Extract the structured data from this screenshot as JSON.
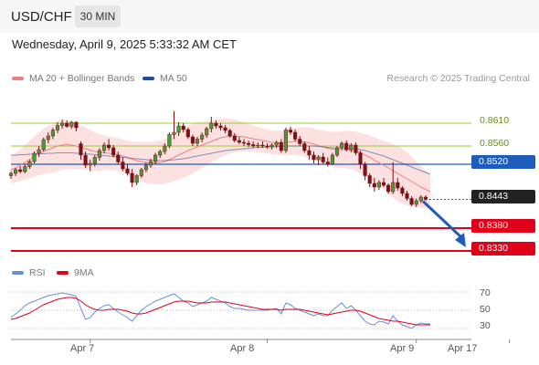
{
  "header": {
    "symbol": "USD/CHF",
    "interval": "30 MIN",
    "datetime": "Wednesday, April 9, 2025 5:33:32 AM CET"
  },
  "legend": {
    "ma20_label": "MA 20 + Bollinger Bands",
    "ma50_label": "MA 50",
    "credit": "Research © 2025 Trading Central"
  },
  "colors": {
    "ma20": "#f08080",
    "ma50": "#1f4e9c",
    "bands_fill": "#fde0e0",
    "candles": "#7a1218",
    "resistance": "#9acd32",
    "pivot": "#1f5bb8",
    "support": "#e0001a",
    "current": "#222222",
    "rsi": "#6a8fd8",
    "rsi_ma": "#e0001a"
  },
  "levels": {
    "r2": "0.8610",
    "r1": "0.8560",
    "pivot": "0.8520",
    "current": "0.8443",
    "s1": "0.8380",
    "s2": "0.8330"
  },
  "rsi": {
    "rsi_label": "RSI",
    "ma_label": "9MA",
    "ticks": [
      "70",
      "50",
      "30"
    ]
  },
  "xaxis": {
    "ticks": [
      "Apr 7",
      "Apr 8",
      "Apr 9",
      "Apr 17"
    ]
  },
  "chart_data": {
    "type": "candlestick",
    "candles": [
      [
        0.8495,
        0.8505,
        0.8488,
        0.85
      ],
      [
        0.85,
        0.8512,
        0.8494,
        0.8508
      ],
      [
        0.8508,
        0.8516,
        0.85,
        0.8504
      ],
      [
        0.8504,
        0.852,
        0.85,
        0.8515
      ],
      [
        0.8515,
        0.853,
        0.851,
        0.8526
      ],
      [
        0.8526,
        0.8548,
        0.8522,
        0.8544
      ],
      [
        0.8544,
        0.856,
        0.8536,
        0.8552
      ],
      [
        0.8552,
        0.8578,
        0.8548,
        0.8574
      ],
      [
        0.8574,
        0.859,
        0.8566,
        0.8582
      ],
      [
        0.8582,
        0.86,
        0.8575,
        0.8595
      ],
      [
        0.8595,
        0.8612,
        0.8588,
        0.8605
      ],
      [
        0.8605,
        0.8618,
        0.8598,
        0.861
      ],
      [
        0.861,
        0.8616,
        0.86,
        0.8603
      ],
      [
        0.8603,
        0.8615,
        0.8598,
        0.8612
      ],
      [
        0.8612,
        0.8614,
        0.8592,
        0.86
      ],
      [
        0.8565,
        0.857,
        0.853,
        0.854
      ],
      [
        0.854,
        0.8548,
        0.8512,
        0.8518
      ],
      [
        0.8518,
        0.853,
        0.8505,
        0.8522
      ],
      [
        0.8522,
        0.854,
        0.8515,
        0.8535
      ],
      [
        0.8535,
        0.8555,
        0.8528,
        0.855
      ],
      [
        0.855,
        0.8568,
        0.8544,
        0.8562
      ],
      [
        0.8562,
        0.8575,
        0.855,
        0.8556
      ],
      [
        0.8556,
        0.8562,
        0.8535,
        0.854
      ],
      [
        0.854,
        0.8548,
        0.852,
        0.8525
      ],
      [
        0.8525,
        0.8535,
        0.8505,
        0.851
      ],
      [
        0.851,
        0.852,
        0.8495,
        0.85
      ],
      [
        0.85,
        0.851,
        0.847,
        0.848
      ],
      [
        0.848,
        0.8498,
        0.8474,
        0.8495
      ],
      [
        0.8495,
        0.8512,
        0.849,
        0.8508
      ],
      [
        0.8508,
        0.8524,
        0.8502,
        0.8518
      ],
      [
        0.8518,
        0.8532,
        0.8512,
        0.8526
      ],
      [
        0.8526,
        0.8545,
        0.852,
        0.854
      ],
      [
        0.854,
        0.8552,
        0.8534,
        0.8548
      ],
      [
        0.8548,
        0.8566,
        0.8542,
        0.856
      ],
      [
        0.856,
        0.859,
        0.8555,
        0.8585
      ],
      [
        0.8585,
        0.8636,
        0.8575,
        0.859
      ],
      [
        0.859,
        0.8612,
        0.8582,
        0.8604
      ],
      [
        0.8604,
        0.861,
        0.859,
        0.8596
      ],
      [
        0.8596,
        0.86,
        0.8575,
        0.858
      ],
      [
        0.858,
        0.8585,
        0.856,
        0.8566
      ],
      [
        0.8566,
        0.858,
        0.856,
        0.8575
      ],
      [
        0.8575,
        0.859,
        0.8568,
        0.8584
      ],
      [
        0.8584,
        0.8602,
        0.8578,
        0.8598
      ],
      [
        0.8598,
        0.8624,
        0.859,
        0.861
      ],
      [
        0.861,
        0.8616,
        0.8598,
        0.8604
      ],
      [
        0.8604,
        0.861,
        0.8594,
        0.86
      ],
      [
        0.86,
        0.8606,
        0.8588,
        0.8594
      ],
      [
        0.8594,
        0.8598,
        0.8578,
        0.8582
      ],
      [
        0.8582,
        0.8588,
        0.8568,
        0.8572
      ],
      [
        0.8572,
        0.858,
        0.8564,
        0.8568
      ],
      [
        0.8568,
        0.8575,
        0.856,
        0.8566
      ],
      [
        0.8566,
        0.8572,
        0.8558,
        0.8563
      ],
      [
        0.8563,
        0.857,
        0.8556,
        0.856
      ],
      [
        0.856,
        0.8568,
        0.8555,
        0.8562
      ],
      [
        0.8562,
        0.857,
        0.8556,
        0.856
      ],
      [
        0.856,
        0.8566,
        0.8554,
        0.8558
      ],
      [
        0.8558,
        0.8566,
        0.8552,
        0.8562
      ],
      [
        0.8562,
        0.8572,
        0.8555,
        0.8568
      ],
      [
        0.8568,
        0.8575,
        0.8545,
        0.855
      ],
      [
        0.855,
        0.86,
        0.8545,
        0.8595
      ],
      [
        0.8595,
        0.8602,
        0.8585,
        0.859
      ],
      [
        0.859,
        0.8596,
        0.857,
        0.8575
      ],
      [
        0.8575,
        0.8582,
        0.856,
        0.8565
      ],
      [
        0.8565,
        0.857,
        0.8545,
        0.855
      ],
      [
        0.855,
        0.856,
        0.853,
        0.854
      ],
      [
        0.854,
        0.8548,
        0.8522,
        0.853
      ],
      [
        0.853,
        0.854,
        0.8518,
        0.8536
      ],
      [
        0.8536,
        0.8545,
        0.852,
        0.8525
      ],
      [
        0.8525,
        0.8535,
        0.8515,
        0.852
      ],
      [
        0.852,
        0.8545,
        0.8518,
        0.854
      ],
      [
        0.854,
        0.856,
        0.8536,
        0.8556
      ],
      [
        0.8556,
        0.857,
        0.8552,
        0.8566
      ],
      [
        0.8566,
        0.8572,
        0.8548,
        0.8552
      ],
      [
        0.8552,
        0.8566,
        0.8546,
        0.8562
      ],
      [
        0.8562,
        0.8568,
        0.854,
        0.8545
      ],
      [
        0.8545,
        0.855,
        0.851,
        0.852
      ],
      [
        0.852,
        0.8525,
        0.8485,
        0.8495
      ],
      [
        0.8495,
        0.85,
        0.847,
        0.8478
      ],
      [
        0.8478,
        0.849,
        0.846,
        0.847
      ],
      [
        0.847,
        0.8485,
        0.8464,
        0.848
      ],
      [
        0.848,
        0.849,
        0.847,
        0.8474
      ],
      [
        0.8474,
        0.8478,
        0.8455,
        0.846
      ],
      [
        0.846,
        0.8525,
        0.8455,
        0.848
      ],
      [
        0.848,
        0.849,
        0.8462,
        0.8468
      ],
      [
        0.8468,
        0.8472,
        0.845,
        0.8456
      ],
      [
        0.8456,
        0.8462,
        0.844,
        0.8445
      ],
      [
        0.8445,
        0.845,
        0.8428,
        0.8432
      ],
      [
        0.8432,
        0.8445,
        0.8426,
        0.844
      ],
      [
        0.844,
        0.8452,
        0.8435,
        0.8448
      ],
      [
        0.8448,
        0.8452,
        0.844,
        0.8443
      ]
    ],
    "ma20": [
      0.8508,
      0.8512,
      0.8518,
      0.8524,
      0.853,
      0.8537,
      0.8543,
      0.8548,
      0.8552,
      0.8556,
      0.856,
      0.8562,
      0.8563,
      0.8562,
      0.856,
      0.8557,
      0.8554,
      0.8551,
      0.8548,
      0.8546,
      0.8545,
      0.8544,
      0.8543,
      0.8541,
      0.8538,
      0.8535,
      0.8531,
      0.8528,
      0.8526,
      0.8524,
      0.8523,
      0.8523,
      0.8524,
      0.8526,
      0.853,
      0.8535,
      0.854,
      0.8545,
      0.855,
      0.8554,
      0.8558,
      0.8562,
      0.8566,
      0.857,
      0.8574,
      0.8578,
      0.858,
      0.8582,
      0.8582,
      0.8581,
      0.858,
      0.8578,
      0.8576,
      0.8574,
      0.8572,
      0.857,
      0.8568,
      0.8567,
      0.8567,
      0.8568,
      0.8569,
      0.857,
      0.857,
      0.8569,
      0.8567,
      0.8564,
      0.8561,
      0.8558,
      0.8555,
      0.8553,
      0.8552,
      0.8552,
      0.8552,
      0.8551,
      0.8549,
      0.8545,
      0.854,
      0.8535,
      0.8529,
      0.8523,
      0.8518,
      0.8512,
      0.8506,
      0.85,
      0.8494,
      0.8488,
      0.8482,
      0.8476,
      0.847,
      0.8465,
      0.846
    ],
    "ma50": [
      0.854,
      0.854,
      0.8541,
      0.8541,
      0.8542,
      0.8542,
      0.8543,
      0.8543,
      0.8544,
      0.8544,
      0.8545,
      0.8545,
      0.8545,
      0.8545,
      0.8544,
      0.8544,
      0.8543,
      0.8542,
      0.8541,
      0.854,
      0.8539,
      0.8538,
      0.8537,
      0.8536,
      0.8535,
      0.8534,
      0.8533,
      0.8532,
      0.8531,
      0.853,
      0.8529,
      0.8528,
      0.8528,
      0.8528,
      0.8529,
      0.853,
      0.8531,
      0.8532,
      0.8534,
      0.8536,
      0.8538,
      0.854,
      0.8542,
      0.8544,
      0.8546,
      0.8548,
      0.855,
      0.8551,
      0.8552,
      0.8553,
      0.8554,
      0.8555,
      0.8556,
      0.8557,
      0.8557,
      0.8558,
      0.8558,
      0.8559,
      0.8559,
      0.856,
      0.856,
      0.856,
      0.856,
      0.856,
      0.856,
      0.856,
      0.8559,
      0.8558,
      0.8557,
      0.8556,
      0.8556,
      0.8556,
      0.8555,
      0.8555,
      0.8554,
      0.8552,
      0.855,
      0.8547,
      0.8544,
      0.8541,
      0.8538,
      0.8534,
      0.853,
      0.8526,
      0.8522,
      0.8518,
      0.8514,
      0.851,
      0.8506,
      0.8502,
      0.8498
    ],
    "band_width": [
      0.003,
      0.0032,
      0.0035,
      0.0038,
      0.0041,
      0.0044,
      0.0047,
      0.005,
      0.0052,
      0.0054,
      0.0055,
      0.0055,
      0.0054,
      0.0052,
      0.005,
      0.0048,
      0.0046,
      0.0044,
      0.0042,
      0.004,
      0.0038,
      0.0037,
      0.0036,
      0.0036,
      0.0036,
      0.0037,
      0.0039,
      0.0041,
      0.0043,
      0.0045,
      0.0046,
      0.0047,
      0.0048,
      0.0049,
      0.005,
      0.0052,
      0.0054,
      0.0055,
      0.0055,
      0.0054,
      0.0052,
      0.005,
      0.0048,
      0.0046,
      0.0044,
      0.0042,
      0.004,
      0.0038,
      0.0036,
      0.0034,
      0.0032,
      0.003,
      0.0029,
      0.0028,
      0.0027,
      0.0026,
      0.0026,
      0.0026,
      0.0027,
      0.0028,
      0.0029,
      0.003,
      0.0031,
      0.0032,
      0.0033,
      0.0034,
      0.0035,
      0.0036,
      0.0037,
      0.0038,
      0.0039,
      0.004,
      0.0041,
      0.0042,
      0.0043,
      0.0044,
      0.0046,
      0.0048,
      0.005,
      0.0052,
      0.0054,
      0.0056,
      0.0058,
      0.006,
      0.006,
      0.0058,
      0.0055,
      0.005,
      0.0046,
      0.0042,
      0.0038
    ],
    "rsi_values": [
      42,
      46,
      50,
      55,
      58,
      60,
      62,
      64,
      66,
      67,
      68,
      69,
      68,
      67,
      65,
      52,
      40,
      42,
      48,
      52,
      55,
      56,
      52,
      48,
      45,
      42,
      38,
      44,
      50,
      54,
      57,
      60,
      62,
      64,
      66,
      68,
      64,
      60,
      58,
      54,
      56,
      58,
      60,
      64,
      62,
      60,
      58,
      54,
      52,
      52,
      51,
      50,
      50,
      50,
      50,
      50,
      51,
      52,
      46,
      58,
      56,
      52,
      50,
      48,
      46,
      44,
      46,
      44,
      44,
      50,
      54,
      58,
      52,
      55,
      50,
      44,
      38,
      35,
      34,
      38,
      37,
      35,
      44,
      38,
      34,
      32,
      30,
      34,
      36,
      35,
      35
    ],
    "rsi_ma_values": [
      40,
      41,
      43,
      45,
      47,
      50,
      53,
      56,
      58,
      60,
      62,
      63,
      64,
      64,
      63,
      60,
      56,
      53,
      51,
      50,
      50,
      51,
      51,
      51,
      50,
      49,
      47,
      46,
      46,
      47,
      49,
      51,
      53,
      55,
      57,
      59,
      60,
      60,
      60,
      59,
      58,
      58,
      58,
      59,
      59,
      59,
      59,
      58,
      57,
      56,
      55,
      54,
      53,
      52,
      51,
      51,
      51,
      51,
      50,
      51,
      51,
      51,
      51,
      50,
      49,
      48,
      47,
      46,
      45,
      46,
      47,
      48,
      49,
      50,
      50,
      49,
      47,
      45,
      43,
      41,
      40,
      39,
      38,
      38,
      37,
      36,
      35,
      34,
      34,
      34,
      34
    ],
    "ylim": [
      0.83,
      0.866
    ],
    "rsi_ylim": [
      20,
      80
    ],
    "x_tick_indices": [
      17,
      55,
      87,
      107
    ],
    "projection": {
      "from_index": 90,
      "to_index": 108,
      "from_value": 0.8443,
      "to_value": 0.833
    }
  }
}
